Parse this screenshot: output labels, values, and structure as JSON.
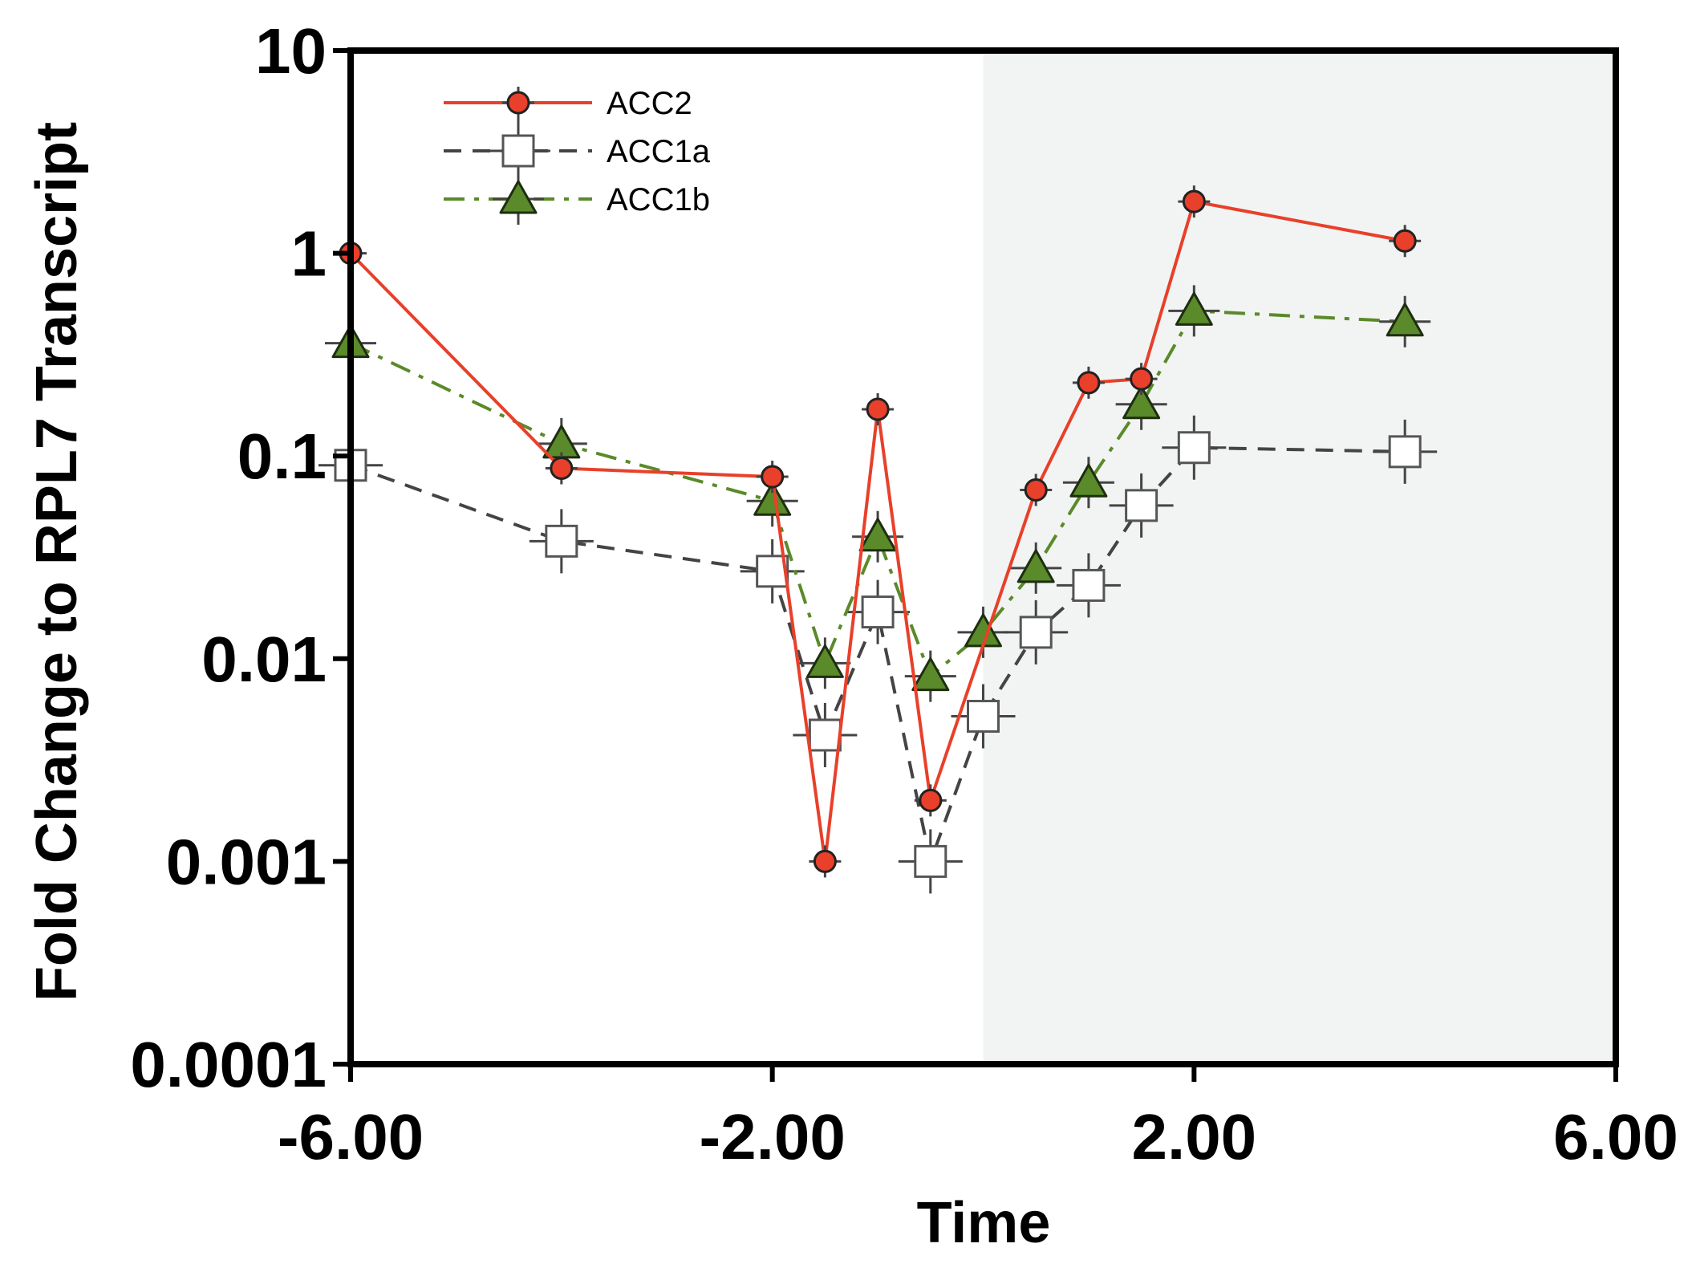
{
  "chart_data": {
    "type": "line",
    "title": "",
    "xlabel": "Time",
    "ylabel": "Fold Change to RPL7 Transcript",
    "xlim": [
      -6,
      6
    ],
    "ylim": [
      0.0001,
      10
    ],
    "yscale": "log",
    "grid": false,
    "legend_position": "top-left",
    "x_ticks": [
      -6,
      -2,
      2,
      6
    ],
    "x_tick_labels": [
      "-6.00",
      "-2.00",
      "2.00",
      "6.00"
    ],
    "y_ticks": [
      0.0001,
      0.001,
      0.01,
      0.1,
      1,
      10
    ],
    "y_tick_labels": [
      "0.0001",
      "0.001",
      "0.01",
      "0.1",
      "1",
      "10"
    ],
    "shaded_region": {
      "x_start": 0,
      "x_end": 6,
      "color": "#f2f4f3"
    },
    "series": [
      {
        "name": "ACC2",
        "color": "#e8402a",
        "marker": "circle",
        "line_style": "solid",
        "x": [
          -6,
          -4,
          -2,
          -1.5,
          -1,
          -0.5,
          0.5,
          1,
          1.5,
          2,
          4
        ],
        "values": [
          1.0,
          0.087,
          0.079,
          0.001,
          0.17,
          0.002,
          0.068,
          0.23,
          0.24,
          1.8,
          1.15
        ]
      },
      {
        "name": "ACC1a",
        "color": "#444444",
        "marker": "square",
        "line_style": "dashed",
        "x": [
          -6,
          -4,
          -2,
          -1.5,
          -1,
          -0.5,
          0,
          0.5,
          1,
          1.5,
          2,
          4
        ],
        "values": [
          0.09,
          0.038,
          0.027,
          0.0042,
          0.017,
          0.001,
          0.0052,
          0.0135,
          0.023,
          0.057,
          0.11,
          0.105
        ]
      },
      {
        "name": "ACC1b",
        "color": "#5a8a2a",
        "marker": "triangle",
        "line_style": "dashdot",
        "x": [
          -6,
          -4,
          -2,
          -1.5,
          -1,
          -0.5,
          0,
          0.5,
          1,
          1.5,
          2,
          4
        ],
        "values": [
          0.36,
          0.115,
          0.06,
          0.0095,
          0.04,
          0.0082,
          0.0135,
          0.028,
          0.074,
          0.18,
          0.52,
          0.46
        ]
      }
    ]
  }
}
